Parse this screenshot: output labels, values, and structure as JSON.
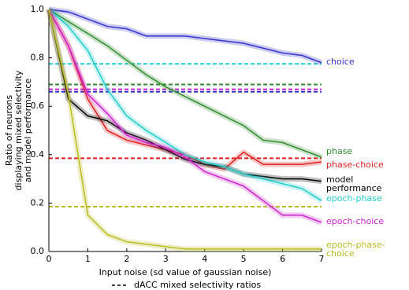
{
  "chart_data": {
    "type": "line",
    "xlabel": "Input noise (sd value of gaussian noise)",
    "ylabel": [
      "Ratio of neurons",
      "displaying mixed selectivity",
      "and model performance"
    ],
    "x": [
      0,
      0.5,
      1,
      1.5,
      2,
      2.5,
      3,
      3.5,
      4,
      4.5,
      5,
      5.5,
      6,
      6.5,
      7
    ],
    "xlim": [
      0,
      7
    ],
    "xticks": [
      0,
      1,
      2,
      3,
      4,
      5,
      6,
      7
    ],
    "ylim": [
      0,
      1
    ],
    "yticks": [
      {
        "value": 0,
        "label": "0.0"
      },
      0.2,
      0.4,
      0.6,
      0.8,
      {
        "value": 1,
        "label": "1.0"
      }
    ],
    "reference_legend": "dACC mixed selectivity ratios",
    "series": [
      {
        "name": "choice",
        "color": "#3333cc",
        "dacc_ratio": 0.66,
        "values": [
          1.0,
          0.99,
          0.96,
          0.93,
          0.92,
          0.89,
          0.89,
          0.89,
          0.88,
          0.87,
          0.86,
          0.84,
          0.82,
          0.81,
          0.78
        ]
      },
      {
        "name": "phase",
        "color": "#2e8b2e",
        "dacc_ratio": 0.69,
        "values": [
          1.0,
          0.95,
          0.9,
          0.85,
          0.79,
          0.73,
          0.68,
          0.64,
          0.6,
          0.56,
          0.52,
          0.46,
          0.45,
          0.42,
          0.39
        ]
      },
      {
        "name": "phase-choice",
        "color": "#e02020",
        "dacc_ratio": 0.385,
        "values": [
          1.0,
          0.85,
          0.63,
          0.5,
          0.46,
          0.44,
          0.42,
          0.4,
          0.36,
          0.34,
          0.41,
          0.36,
          0.36,
          0.36,
          0.37
        ]
      },
      {
        "name": "model performance",
        "color": "#000000",
        "values": [
          1.0,
          0.63,
          0.56,
          0.54,
          0.49,
          0.46,
          0.42,
          0.38,
          0.36,
          0.35,
          0.32,
          0.31,
          0.3,
          0.3,
          0.29
        ]
      },
      {
        "name": "epoch-phase",
        "color": "#22cccc",
        "dacc_ratio": 0.775,
        "values": [
          1.0,
          0.93,
          0.83,
          0.67,
          0.56,
          0.5,
          0.45,
          0.4,
          0.37,
          0.35,
          0.32,
          0.3,
          0.28,
          0.26,
          0.21
        ]
      },
      {
        "name": "epoch-choice",
        "color": "#cc22cc",
        "dacc_ratio": 0.67,
        "values": [
          1.0,
          0.85,
          0.65,
          0.57,
          0.48,
          0.45,
          0.43,
          0.39,
          0.33,
          0.3,
          0.27,
          0.21,
          0.15,
          0.15,
          0.12
        ]
      },
      {
        "name": "epoch-phase-choice",
        "color": "#bbbb22",
        "dacc_ratio": 0.185,
        "values": [
          1.0,
          0.65,
          0.15,
          0.07,
          0.04,
          0.03,
          0.02,
          0.01,
          0.01,
          0.01,
          0.01,
          0.01,
          0.01,
          0.01,
          0.01
        ]
      }
    ]
  }
}
